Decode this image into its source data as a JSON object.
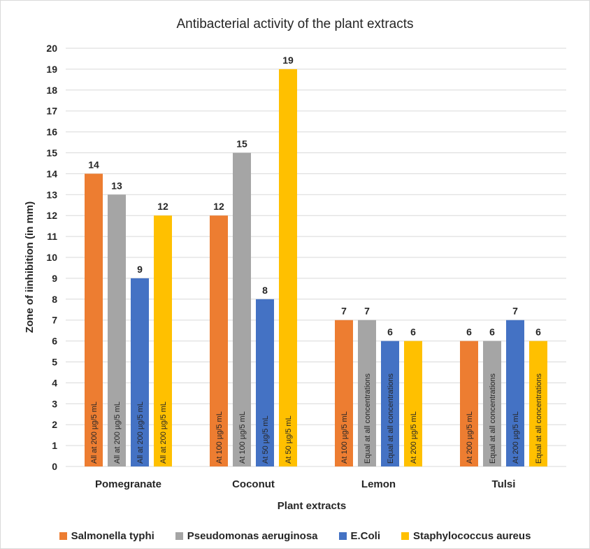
{
  "chart_data": {
    "type": "bar",
    "title": "Antibacterial activity of the plant extracts",
    "xlabel": "Plant extracts",
    "ylabel": "Zone of iinhibition (in mm)",
    "ylim": [
      0,
      20
    ],
    "yticks": [
      "0",
      "1",
      "2",
      "3",
      "4",
      "5",
      "6",
      "7",
      "8",
      "9",
      "10",
      "11",
      "12",
      "13",
      "14",
      "15",
      "16",
      "17",
      "18",
      "19",
      "20"
    ],
    "categories": [
      "Pomegranate",
      "Coconut",
      "Lemon",
      "Tulsi"
    ],
    "grid": true,
    "legend_position": "bottom",
    "series": [
      {
        "name": "Salmonella typhi",
        "color": "#ed7d31",
        "values": [
          14,
          12,
          7,
          6
        ],
        "notes": [
          "All at 200 µg/5 mL",
          "At 100 µg/5 mL",
          "At 100 µg/5 mL",
          "At 200 µg/5 mL"
        ]
      },
      {
        "name": "Pseudomonas aeruginosa",
        "color": "#a5a5a5",
        "values": [
          13,
          15,
          7,
          6
        ],
        "notes": [
          "All at 200 µg/5 mL",
          "At 100 µg/5 mL",
          "Equal at all concentrations",
          "Equal at all concentrations"
        ]
      },
      {
        "name": "E.Coli",
        "color": "#4472c4",
        "values": [
          9,
          8,
          6,
          7
        ],
        "notes": [
          "All at 200 µg/5 mL",
          "At 50 µg/5 mL",
          "Equal at all concentrations",
          "At 200 µg/5 mL"
        ]
      },
      {
        "name": "Staphylococcus aureus",
        "color": "#ffc000",
        "values": [
          12,
          19,
          6,
          6
        ],
        "notes": [
          "All at 200 µg/5 mL",
          "At 50 µg/5 mL",
          "At 200 µg/5 mL",
          "Equal at all concentrations"
        ]
      }
    ]
  }
}
